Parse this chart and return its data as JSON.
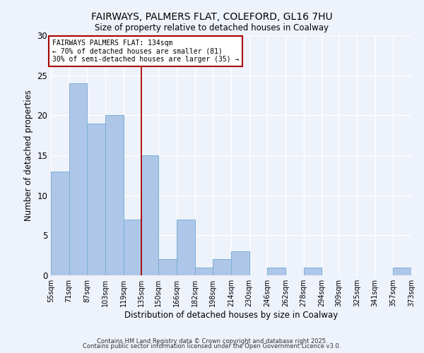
{
  "title1": "FAIRWAYS, PALMERS FLAT, COLEFORD, GL16 7HU",
  "title2": "Size of property relative to detached houses in Coalway",
  "xlabel": "Distribution of detached houses by size in Coalway",
  "ylabel": "Number of detached properties",
  "bin_edges": [
    55,
    71,
    87,
    103,
    119,
    135,
    150,
    166,
    182,
    198,
    214,
    230,
    246,
    262,
    278,
    294,
    309,
    325,
    341,
    357,
    373
  ],
  "bar_heights": [
    13,
    24,
    19,
    20,
    7,
    15,
    2,
    7,
    1,
    2,
    3,
    0,
    1,
    0,
    1,
    0,
    0,
    0,
    0,
    1
  ],
  "bar_color": "#aec6e8",
  "bar_edge_color": "#7ab0d4",
  "vline_x": 135,
  "vline_color": "#aa0000",
  "annotation_text": "FAIRWAYS PALMERS FLAT: 134sqm\n← 70% of detached houses are smaller (81)\n30% of semi-detached houses are larger (35) →",
  "annotation_box_color": "#ffffff",
  "annotation_box_edge": "#aa0000",
  "ylim": [
    0,
    30
  ],
  "yticks": [
    0,
    5,
    10,
    15,
    20,
    25,
    30
  ],
  "tick_labels": [
    "55sqm",
    "71sqm",
    "87sqm",
    "103sqm",
    "119sqm",
    "135sqm",
    "150sqm",
    "166sqm",
    "182sqm",
    "198sqm",
    "214sqm",
    "230sqm",
    "246sqm",
    "262sqm",
    "278sqm",
    "294sqm",
    "309sqm",
    "325sqm",
    "341sqm",
    "357sqm",
    "373sqm"
  ],
  "footer1": "Contains HM Land Registry data © Crown copyright and database right 2025.",
  "footer2": "Contains public sector information licensed under the Open Government Licence v3.0.",
  "background_color": "#eef2fb"
}
